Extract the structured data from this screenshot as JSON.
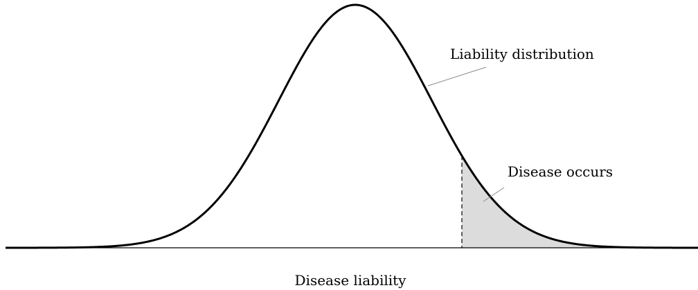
{
  "labels": {
    "curve": "Liability distribution",
    "tail": "Disease occurs",
    "axis": "Disease liability"
  }
}
